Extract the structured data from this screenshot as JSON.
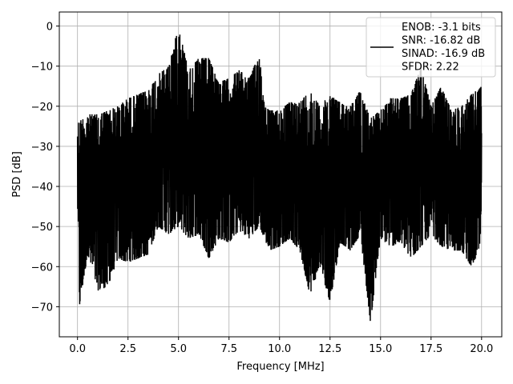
{
  "chart_data": {
    "type": "line",
    "title": "",
    "xlabel": "Frequency [MHz]",
    "ylabel": "PSD [dB]",
    "xlim": [
      -0.9,
      21.0
    ],
    "ylim": [
      -77.5,
      3.5
    ],
    "grid": true,
    "x_ticks": [
      0.0,
      2.5,
      5.0,
      7.5,
      10.0,
      12.5,
      15.0,
      17.5,
      20.0
    ],
    "x_tick_labels": [
      "0.0",
      "2.5",
      "5.0",
      "7.5",
      "10.0",
      "12.5",
      "15.0",
      "17.5",
      "20.0"
    ],
    "y_ticks": [
      0,
      -10,
      -20,
      -30,
      -40,
      -50,
      -60,
      -70
    ],
    "y_tick_labels": [
      "0",
      "−10",
      "−20",
      "−30",
      "−40",
      "−50",
      "−60",
      "−70"
    ],
    "legend": {
      "placement": "top-right",
      "lines": [
        "ENOB: -3.1 bits",
        "SNR: -16.82 dB",
        "SINAD: -16.9 dB",
        "SFDR: 2.22"
      ]
    },
    "series": [
      {
        "color": "#000000",
        "upper_envelope": {
          "x": [
            0.0,
            0.5,
            1.0,
            1.5,
            2.0,
            2.5,
            3.0,
            3.5,
            4.0,
            4.5,
            5.0,
            5.5,
            6.0,
            6.5,
            7.0,
            7.5,
            8.0,
            8.5,
            9.0,
            9.3,
            9.5,
            10.0,
            10.5,
            11.0,
            11.5,
            12.0,
            12.5,
            13.0,
            13.5,
            14.0,
            14.5,
            15.0,
            15.5,
            16.0,
            16.5,
            17.0,
            17.5,
            18.0,
            18.5,
            19.0,
            19.5,
            20.0
          ],
          "y": [
            -24,
            -22,
            -22,
            -21,
            -20,
            -18,
            -17,
            -16,
            -12,
            -10,
            0,
            -11,
            -8,
            -8,
            -14,
            -13,
            -11,
            -13,
            -7,
            -20,
            -21,
            -21,
            -19,
            -19,
            -16,
            -20,
            -17,
            -19,
            -20,
            -16,
            -23,
            -21,
            -18,
            -18,
            -17,
            -10,
            -20,
            -15,
            -21,
            -20,
            -17,
            -15
          ]
        },
        "lower_envelope": {
          "x": [
            0.0,
            0.1,
            0.5,
            1.0,
            1.5,
            2.0,
            2.5,
            3.0,
            3.5,
            4.0,
            4.5,
            5.0,
            5.5,
            6.0,
            6.5,
            7.0,
            7.5,
            8.0,
            8.5,
            9.0,
            9.5,
            10.0,
            10.5,
            11.0,
            11.5,
            12.0,
            12.5,
            13.0,
            13.5,
            14.0,
            14.5,
            15.0,
            15.5,
            16.0,
            16.5,
            17.0,
            17.5,
            18.0,
            18.5,
            19.0,
            19.5,
            20.0
          ],
          "y": [
            -44,
            -70,
            -57,
            -66,
            -65,
            -58,
            -59,
            -58,
            -57,
            -50,
            -52,
            -50,
            -53,
            -52,
            -58,
            -53,
            -54,
            -51,
            -53,
            -50,
            -56,
            -55,
            -53,
            -56,
            -67,
            -60,
            -69,
            -54,
            -56,
            -52,
            -74,
            -53,
            -55,
            -54,
            -58,
            -55,
            -52,
            -55,
            -56,
            -56,
            -60,
            -55
          ]
        }
      }
    ]
  }
}
